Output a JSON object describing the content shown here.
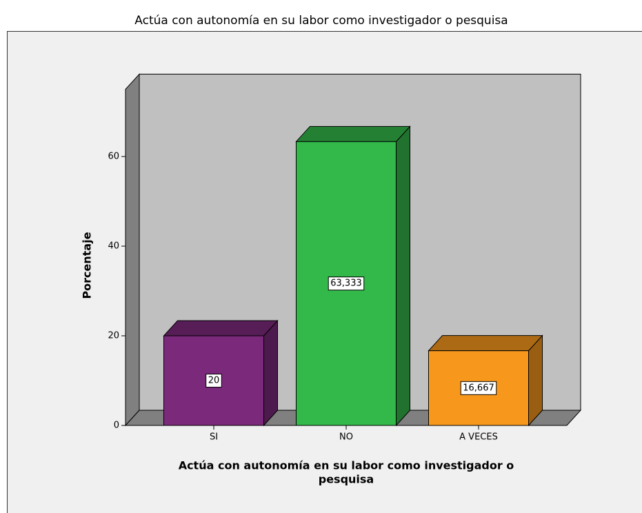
{
  "chart_data": {
    "type": "bar3d",
    "title": "Actúa con autonomía en su labor como investigador o pesquisa",
    "ylabel": "Porcentaje",
    "xlabel": [
      "Actúa con autonomía en su labor como investigador o",
      "pesquisa"
    ],
    "categories": [
      "SI",
      "NO",
      "A VECES"
    ],
    "values": [
      20,
      63.333,
      16.667
    ],
    "value_labels": [
      "20",
      "63,333",
      "16,667"
    ],
    "colors": [
      "#7b2a7b",
      "#33b84a",
      "#f7981d"
    ],
    "ylim": [
      0,
      75
    ],
    "yticks": [
      0,
      20,
      40,
      60
    ]
  }
}
